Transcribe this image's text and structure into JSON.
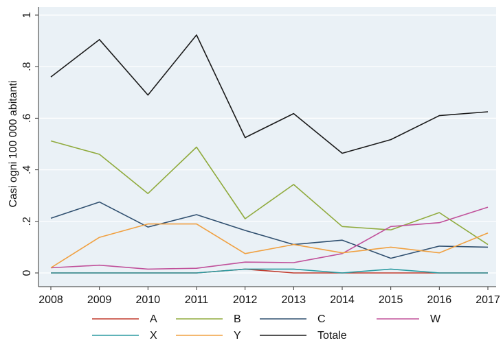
{
  "chart_data": {
    "type": "line",
    "ylabel": "Casi ogni 100 000 abitanti",
    "xlabel": "",
    "x": [
      "2008",
      "2009",
      "2010",
      "2011",
      "2012",
      "2013",
      "2014",
      "2015",
      "2016",
      "2017"
    ],
    "ylim": [
      0,
      1
    ],
    "yticks": [
      {
        "value": 0,
        "label": "0"
      },
      {
        "value": 0.2,
        "label": ".2"
      },
      {
        "value": 0.4,
        "label": ".4"
      },
      {
        "value": 0.6,
        "label": ".6"
      },
      {
        "value": 0.8,
        "label": ".8"
      },
      {
        "value": 1,
        "label": "1"
      }
    ],
    "grid": true,
    "legend_position": "bottom",
    "series": [
      {
        "name": "A",
        "color": "#c0392b",
        "values": [
          0.0,
          0.0,
          0.0,
          0.0,
          0.015,
          0.0,
          0.0,
          0.0,
          0.0,
          0.0
        ]
      },
      {
        "name": "B",
        "color": "#8faa3c",
        "values": [
          0.512,
          0.46,
          0.308,
          0.488,
          0.21,
          0.343,
          0.18,
          0.167,
          0.234,
          0.11
        ]
      },
      {
        "name": "C",
        "color": "#2f4f6f",
        "values": [
          0.212,
          0.275,
          0.178,
          0.226,
          0.165,
          0.11,
          0.127,
          0.057,
          0.104,
          0.1
        ]
      },
      {
        "name": "W",
        "color": "#c0509a",
        "values": [
          0.02,
          0.03,
          0.015,
          0.018,
          0.042,
          0.04,
          0.075,
          0.18,
          0.195,
          0.255
        ]
      },
      {
        "name": "X",
        "color": "#2a9aa0",
        "values": [
          0.0,
          0.0,
          0.0,
          0.0,
          0.015,
          0.015,
          0.0,
          0.015,
          0.0,
          0.0
        ]
      },
      {
        "name": "Y",
        "color": "#f0a040",
        "values": [
          0.02,
          0.138,
          0.19,
          0.19,
          0.075,
          0.11,
          0.078,
          0.1,
          0.078,
          0.155
        ]
      },
      {
        "name": "Totale",
        "color": "#1a1a1a",
        "values": [
          0.76,
          0.905,
          0.69,
          0.923,
          0.525,
          0.618,
          0.464,
          0.517,
          0.61,
          0.625
        ]
      }
    ]
  }
}
